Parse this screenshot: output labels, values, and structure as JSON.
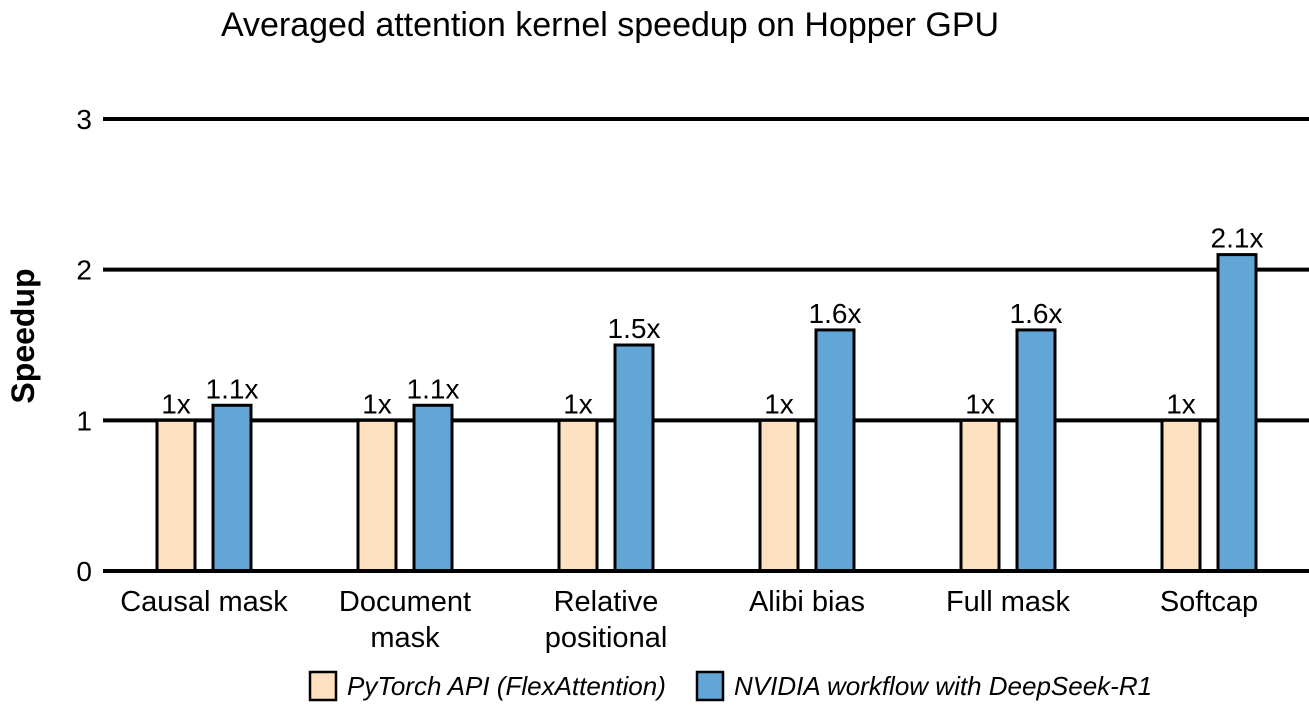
{
  "chart_data": {
    "type": "bar",
    "title": "Averaged attention kernel speedup on Hopper GPU",
    "xlabel": "",
    "ylabel": "Speedup",
    "ylim": [
      0,
      3
    ],
    "yticks": [
      0,
      1,
      2,
      3
    ],
    "grid": true,
    "legend_position": "bottom",
    "categories": [
      [
        "Causal mask"
      ],
      [
        "Document",
        "mask"
      ],
      [
        "Relative",
        "positional"
      ],
      [
        "Alibi bias"
      ],
      [
        "Full mask"
      ],
      [
        "Softcap"
      ]
    ],
    "series": [
      {
        "name": "PyTorch API (FlexAttention)",
        "color": "#fde0bf",
        "values": [
          1,
          1,
          1,
          1,
          1,
          1
        ],
        "labels": [
          "1x",
          "1x",
          "1x",
          "1x",
          "1x",
          "1x"
        ]
      },
      {
        "name": "NVIDIA workflow with DeepSeek-R1",
        "color": "#62a6d8",
        "values": [
          1.1,
          1.1,
          1.5,
          1.6,
          1.6,
          2.1
        ],
        "labels": [
          "1.1x",
          "1.1x",
          "1.5x",
          "1.6x",
          "1.6x",
          "2.1x"
        ]
      }
    ]
  }
}
